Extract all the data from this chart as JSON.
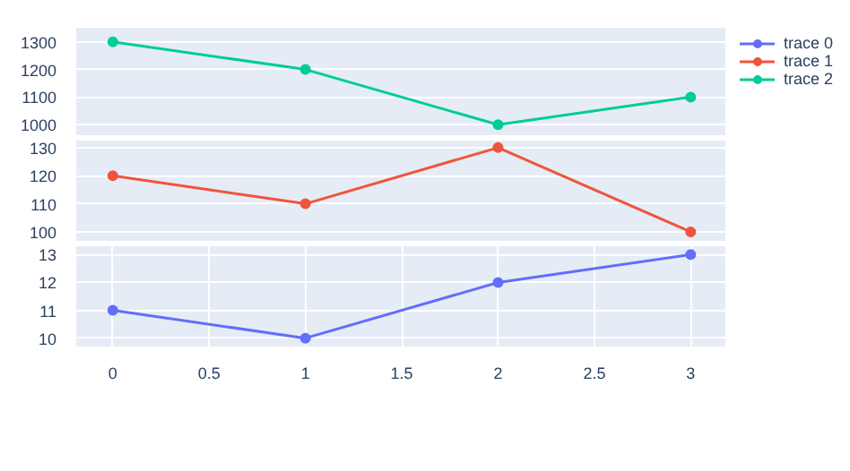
{
  "chart_data": [
    {
      "type": "line",
      "x": [
        0,
        1,
        2,
        3
      ],
      "xlim": [
        -0.19,
        3.18
      ],
      "ylim": [
        962,
        1351
      ],
      "yticks": [
        1000,
        1100,
        1200,
        1300
      ],
      "tick_labels": "y",
      "grid": true,
      "marker": "circle",
      "legend": "top right",
      "series": [
        {
          "name": "trace 2",
          "color": "#00cc96",
          "values": [
            1300,
            1200,
            1000,
            1100
          ]
        }
      ]
    },
    {
      "type": "line",
      "x": [
        0,
        1,
        2,
        3
      ],
      "xlim": [
        -0.19,
        3.18
      ],
      "ylim": [
        96.8,
        132.5
      ],
      "yticks": [
        100,
        110,
        120,
        130
      ],
      "tick_labels": "y",
      "grid": true,
      "marker": "circle",
      "series": [
        {
          "name": "trace 1",
          "color": "#ef553b",
          "values": [
            120,
            110,
            130,
            100
          ]
        }
      ]
    },
    {
      "type": "line",
      "x": [
        0,
        1,
        2,
        3
      ],
      "xlim": [
        -0.19,
        3.18
      ],
      "xticks": [
        0,
        0.5,
        1,
        1.5,
        2,
        2.5,
        3
      ],
      "ylim": [
        9.7,
        13.3
      ],
      "yticks": [
        10,
        11,
        12,
        13
      ],
      "grid": true,
      "marker": "circle",
      "series": [
        {
          "name": "trace 0",
          "color": "#636efa",
          "values": [
            11,
            10,
            12,
            13
          ]
        }
      ]
    }
  ]
}
